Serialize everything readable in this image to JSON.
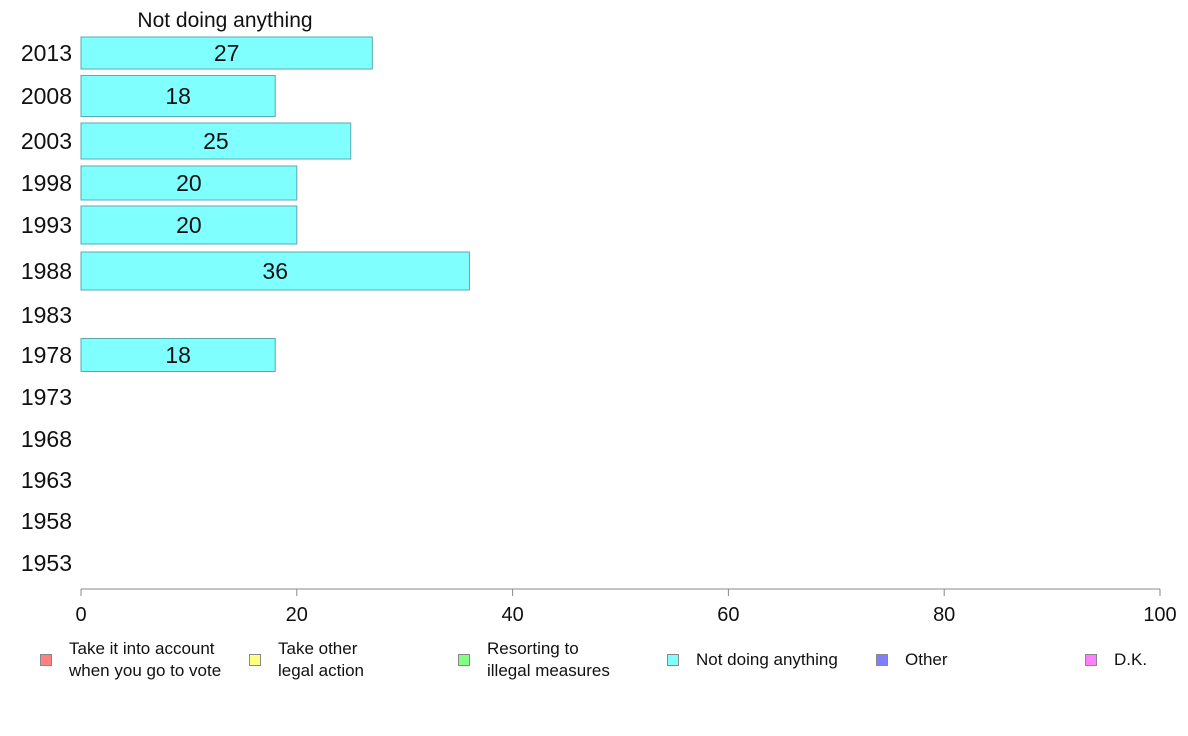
{
  "chart_data": {
    "type": "bar",
    "orientation": "horizontal",
    "title": "Not doing anything",
    "categories": [
      "2013",
      "2008",
      "2003",
      "1998",
      "1993",
      "1988",
      "1983",
      "1978",
      "1973",
      "1968",
      "1963",
      "1958",
      "1953"
    ],
    "values": [
      27,
      18,
      25,
      20,
      20,
      36,
      null,
      18,
      null,
      null,
      null,
      null,
      null
    ],
    "data_labels": [
      "27",
      "18",
      "25",
      "20",
      "20",
      "36",
      "",
      "18",
      "",
      "",
      "",
      "",
      ""
    ],
    "xlim": [
      0,
      100
    ],
    "x_ticks": [
      "0",
      "20",
      "40",
      "60",
      "80",
      "100"
    ],
    "grid": false,
    "bar_color": "#80ffff",
    "bar_edge_color": "#5aa9b0",
    "legend_position": "bottom",
    "legend": [
      {
        "label": "Take it into account\nwhen you go to vote",
        "color": "#ff8080"
      },
      {
        "label": "Take other\nlegal action",
        "color": "#ffff80"
      },
      {
        "label": "Resorting to\nillegal measures",
        "color": "#80ff80"
      },
      {
        "label": "Not doing anything",
        "color": "#80ffff"
      },
      {
        "label": "Other",
        "color": "#8080ff"
      },
      {
        "label": "D.K.",
        "color": "#ff80ff"
      }
    ]
  }
}
